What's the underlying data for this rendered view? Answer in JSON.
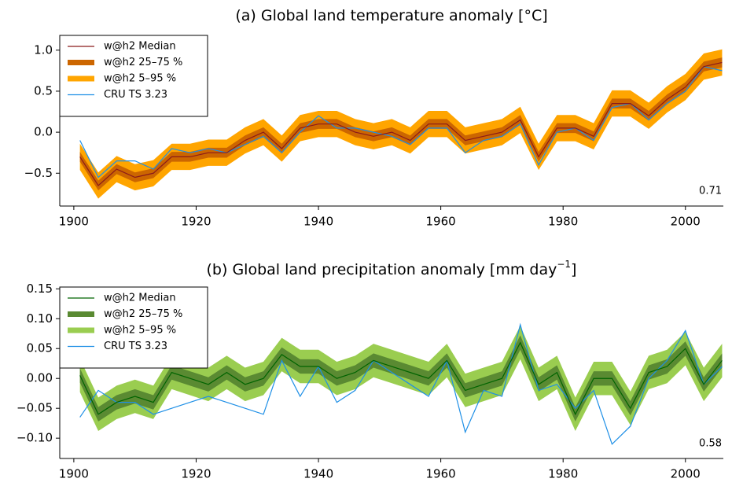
{
  "chart_data": [
    {
      "type": "band-line",
      "title": "(a) Global land temperature anomaly [°C]",
      "annotation": "0.71",
      "legend": "upper left",
      "x": [
        1901,
        1904,
        1907,
        1910,
        1913,
        1916,
        1919,
        1922,
        1925,
        1928,
        1931,
        1934,
        1937,
        1940,
        1943,
        1946,
        1949,
        1952,
        1955,
        1958,
        1961,
        1964,
        1967,
        1970,
        1973,
        1976,
        1979,
        1982,
        1985,
        1988,
        1991,
        1994,
        1997,
        2000,
        2003,
        2006
      ],
      "xlim": [
        1897.7,
        2006.2
      ],
      "xticks": [
        1900,
        1920,
        1940,
        1960,
        1980,
        2000
      ],
      "ylim": [
        -0.9,
        1.18
      ],
      "yticks": [
        {
          "value": -0.5,
          "label": "−0.5"
        },
        {
          "value": 0,
          "label": "0.0"
        },
        {
          "value": 0.5,
          "label": "0.5"
        },
        {
          "value": 1,
          "label": "1.0"
        }
      ],
      "series": [
        {
          "name": "w@h2 Median",
          "kind": "line",
          "color": "#8b1a1a",
          "values": [
            -0.3,
            -0.65,
            -0.45,
            -0.55,
            -0.5,
            -0.3,
            -0.3,
            -0.25,
            -0.25,
            -0.1,
            0.0,
            -0.2,
            0.05,
            0.1,
            0.1,
            0.0,
            -0.05,
            0.0,
            -0.1,
            0.1,
            0.1,
            -0.1,
            -0.05,
            0.0,
            0.15,
            -0.3,
            0.05,
            0.05,
            -0.05,
            0.35,
            0.35,
            0.2,
            0.4,
            0.55,
            0.8,
            0.85
          ]
        },
        {
          "name": "w@h2 25–75 %",
          "kind": "band",
          "color": "#cc6600",
          "lower": [
            -0.36,
            -0.71,
            -0.51,
            -0.61,
            -0.56,
            -0.36,
            -0.36,
            -0.31,
            -0.31,
            -0.16,
            -0.06,
            -0.26,
            -0.01,
            0.04,
            0.04,
            -0.06,
            -0.11,
            -0.06,
            -0.16,
            0.04,
            0.04,
            -0.16,
            -0.11,
            -0.06,
            0.09,
            -0.36,
            -0.01,
            -0.01,
            -0.11,
            0.29,
            0.29,
            0.14,
            0.34,
            0.49,
            0.74,
            0.79
          ],
          "upper": [
            -0.24,
            -0.59,
            -0.39,
            -0.49,
            -0.44,
            -0.24,
            -0.24,
            -0.19,
            -0.19,
            -0.04,
            0.06,
            -0.14,
            0.11,
            0.16,
            0.16,
            0.06,
            0.01,
            0.06,
            -0.04,
            0.16,
            0.16,
            -0.04,
            0.01,
            0.06,
            0.21,
            -0.24,
            0.11,
            0.11,
            0.01,
            0.41,
            0.41,
            0.26,
            0.46,
            0.61,
            0.86,
            0.91
          ]
        },
        {
          "name": "w@h2 5–95 %",
          "kind": "band",
          "color": "#ffa500",
          "lower": [
            -0.46,
            -0.81,
            -0.61,
            -0.71,
            -0.66,
            -0.46,
            -0.46,
            -0.41,
            -0.41,
            -0.26,
            -0.16,
            -0.36,
            -0.11,
            -0.06,
            -0.06,
            -0.16,
            -0.21,
            -0.16,
            -0.26,
            -0.06,
            -0.06,
            -0.26,
            -0.21,
            -0.16,
            -0.01,
            -0.46,
            -0.11,
            -0.11,
            -0.21,
            0.19,
            0.19,
            0.04,
            0.24,
            0.39,
            0.64,
            0.69
          ],
          "upper": [
            -0.14,
            -0.49,
            -0.29,
            -0.39,
            -0.34,
            -0.14,
            -0.14,
            -0.09,
            -0.09,
            0.06,
            0.16,
            -0.04,
            0.21,
            0.26,
            0.26,
            0.16,
            0.11,
            0.16,
            0.06,
            0.26,
            0.26,
            0.06,
            0.11,
            0.16,
            0.31,
            -0.14,
            0.21,
            0.21,
            0.11,
            0.51,
            0.51,
            0.36,
            0.56,
            0.71,
            0.96,
            1.01
          ]
        },
        {
          "name": "CRU TS 3.23",
          "kind": "line",
          "color": "#1e8fe6",
          "values": [
            -0.1,
            -0.55,
            -0.35,
            -0.35,
            -0.45,
            -0.2,
            -0.25,
            -0.2,
            -0.25,
            -0.15,
            -0.05,
            -0.25,
            0.0,
            0.2,
            0.05,
            0.05,
            0.0,
            -0.05,
            -0.15,
            0.05,
            0.05,
            -0.25,
            -0.1,
            -0.05,
            0.1,
            -0.4,
            0.0,
            0.05,
            -0.1,
            0.3,
            0.35,
            0.15,
            0.35,
            0.5,
            0.8,
            0.75
          ]
        }
      ]
    },
    {
      "type": "band-line",
      "title": "(b) Global land precipitation anomaly [mm day",
      "title_superscript": "−1",
      "title_suffix": "]",
      "annotation": "0.58",
      "legend": "upper left",
      "x": [
        1901,
        1904,
        1907,
        1910,
        1913,
        1916,
        1919,
        1922,
        1925,
        1928,
        1931,
        1934,
        1937,
        1940,
        1943,
        1946,
        1949,
        1952,
        1955,
        1958,
        1961,
        1964,
        1967,
        1970,
        1973,
        1976,
        1979,
        1982,
        1985,
        1988,
        1991,
        1994,
        1997,
        2000,
        2003,
        2006
      ],
      "xlim": [
        1897.7,
        2006.2
      ],
      "xticks": [
        1900,
        1920,
        1940,
        1960,
        1980,
        2000
      ],
      "ylim": [
        -0.134,
        0.153
      ],
      "yticks": [
        {
          "value": -0.1,
          "label": "−0.10"
        },
        {
          "value": -0.05,
          "label": "−0.05"
        },
        {
          "value": 0,
          "label": "0.00"
        },
        {
          "value": 0.05,
          "label": "0.05"
        },
        {
          "value": 0.1,
          "label": "0.10"
        },
        {
          "value": 0.15,
          "label": "0.15"
        }
      ],
      "series": [
        {
          "name": "w@h2 Median",
          "kind": "line",
          "color": "#006400",
          "values": [
            0.005,
            -0.06,
            -0.04,
            -0.03,
            -0.04,
            0.01,
            0.0,
            -0.01,
            0.01,
            -0.01,
            0.0,
            0.04,
            0.02,
            0.02,
            0.0,
            0.01,
            0.03,
            0.02,
            0.01,
            0.0,
            0.03,
            -0.02,
            -0.01,
            0.0,
            0.06,
            -0.01,
            0.01,
            -0.06,
            0.0,
            0.0,
            -0.05,
            0.01,
            0.02,
            0.05,
            -0.01,
            0.03
          ]
        },
        {
          "name": "w@h2 25–75 %",
          "kind": "band",
          "color": "#5a8a32",
          "lower": [
            -0.007,
            -0.072,
            -0.052,
            -0.042,
            -0.052,
            -0.002,
            -0.012,
            -0.022,
            -0.002,
            -0.022,
            -0.012,
            0.028,
            0.008,
            0.008,
            -0.012,
            -0.002,
            0.018,
            0.008,
            -0.002,
            -0.012,
            0.018,
            -0.032,
            -0.022,
            -0.012,
            0.048,
            -0.022,
            -0.002,
            -0.072,
            -0.012,
            -0.012,
            -0.062,
            -0.002,
            0.008,
            0.038,
            -0.022,
            0.018
          ],
          "upper": [
            0.017,
            -0.048,
            -0.028,
            -0.018,
            -0.028,
            0.022,
            0.012,
            0.002,
            0.022,
            0.002,
            0.012,
            0.052,
            0.032,
            0.032,
            0.012,
            0.022,
            0.042,
            0.032,
            0.022,
            0.012,
            0.042,
            -0.008,
            0.002,
            0.012,
            0.072,
            0.002,
            0.022,
            -0.048,
            0.012,
            0.012,
            -0.038,
            0.022,
            0.032,
            0.062,
            0.002,
            0.042
          ]
        },
        {
          "name": "w@h2 5–95 %",
          "kind": "band",
          "color": "#9acd50",
          "lower": [
            -0.023,
            -0.088,
            -0.068,
            -0.058,
            -0.068,
            -0.018,
            -0.028,
            -0.038,
            -0.018,
            -0.038,
            -0.028,
            0.012,
            -0.008,
            -0.008,
            -0.028,
            -0.018,
            0.002,
            -0.008,
            -0.018,
            -0.028,
            0.002,
            -0.048,
            -0.038,
            -0.028,
            0.032,
            -0.038,
            -0.018,
            -0.088,
            -0.028,
            -0.028,
            -0.078,
            -0.018,
            -0.008,
            0.022,
            -0.038,
            0.002
          ],
          "upper": [
            0.033,
            -0.032,
            -0.012,
            -0.002,
            -0.012,
            0.038,
            0.028,
            0.018,
            0.038,
            0.018,
            0.028,
            0.068,
            0.048,
            0.048,
            0.028,
            0.038,
            0.058,
            0.048,
            0.038,
            0.028,
            0.058,
            0.008,
            0.018,
            0.028,
            0.088,
            0.018,
            0.038,
            -0.032,
            0.028,
            0.028,
            -0.022,
            0.038,
            0.048,
            0.078,
            0.018,
            0.058
          ]
        },
        {
          "name": "CRU TS 3.23",
          "kind": "line",
          "color": "#1e8fe6",
          "values": [
            -0.065,
            -0.02,
            -0.04,
            -0.04,
            -0.06,
            -0.05,
            -0.04,
            -0.03,
            -0.04,
            -0.05,
            -0.06,
            0.03,
            -0.03,
            0.02,
            -0.04,
            -0.02,
            0.03,
            0.01,
            -0.01,
            -0.03,
            0.03,
            -0.09,
            -0.02,
            -0.03,
            0.09,
            -0.02,
            -0.01,
            -0.05,
            -0.02,
            -0.11,
            -0.08,
            0.0,
            0.03,
            0.08,
            -0.01,
            0.02
          ]
        }
      ]
    }
  ]
}
